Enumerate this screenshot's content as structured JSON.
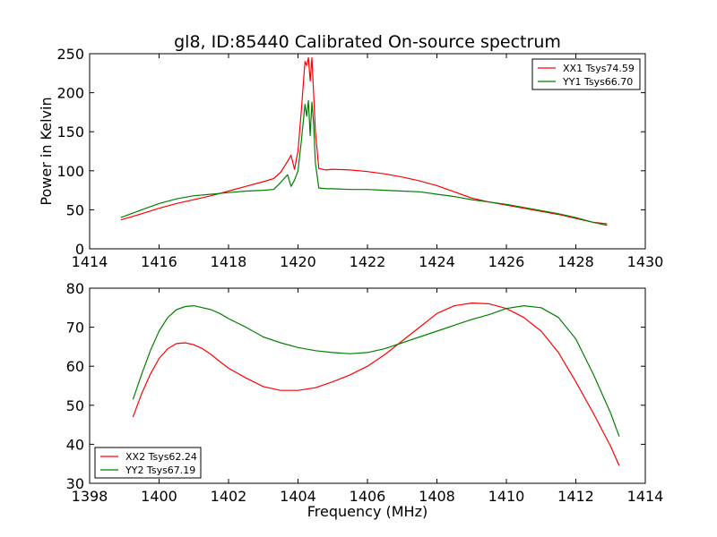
{
  "chart_data": [
    {
      "type": "line",
      "title": "gl8, ID:85440 Calibrated On-source spectrum",
      "xlabel": "",
      "ylabel": "Power in Kelvin",
      "xlim": [
        1414,
        1430
      ],
      "ylim": [
        0,
        250
      ],
      "xticks": [
        "1414",
        "1416",
        "1418",
        "1420",
        "1422",
        "1424",
        "1426",
        "1428",
        "1430"
      ],
      "yticks": [
        "0",
        "50",
        "100",
        "150",
        "200",
        "250"
      ],
      "grid": false,
      "legend_position": "top-right",
      "series": [
        {
          "name": "XX1 Tsys74.59",
          "color": "#ff0000",
          "x": [
            1414.9,
            1415.5,
            1416,
            1416.5,
            1417,
            1417.5,
            1418,
            1418.5,
            1419,
            1419.3,
            1419.5,
            1419.7,
            1419.8,
            1419.9,
            1420.0,
            1420.1,
            1420.2,
            1420.25,
            1420.3,
            1420.35,
            1420.4,
            1420.45,
            1420.5,
            1420.6,
            1420.8,
            1421,
            1421.5,
            1422,
            1422.5,
            1423,
            1423.5,
            1424,
            1424.5,
            1425,
            1425.5,
            1426,
            1426.5,
            1427,
            1427.5,
            1428,
            1428.5,
            1428.9
          ],
          "values": [
            37,
            45,
            52,
            58,
            63,
            68,
            74,
            80,
            86,
            90,
            98,
            112,
            120,
            102,
            125,
            180,
            240,
            235,
            245,
            215,
            245,
            200,
            150,
            103,
            101,
            102,
            101,
            99,
            96,
            92,
            87,
            81,
            73,
            65,
            60,
            56,
            52,
            48,
            44,
            39,
            34,
            32
          ]
        },
        {
          "name": "YY1 Tsys66.70",
          "color": "#008000",
          "x": [
            1414.9,
            1415.5,
            1416,
            1416.5,
            1417,
            1417.5,
            1418,
            1418.5,
            1419,
            1419.3,
            1419.5,
            1419.7,
            1419.8,
            1419.9,
            1420.0,
            1420.1,
            1420.2,
            1420.25,
            1420.3,
            1420.35,
            1420.4,
            1420.45,
            1420.5,
            1420.6,
            1420.8,
            1421,
            1421.5,
            1422,
            1422.5,
            1423,
            1423.5,
            1424,
            1424.5,
            1425,
            1425.5,
            1426,
            1426.5,
            1427,
            1427.5,
            1428,
            1428.5,
            1428.9
          ],
          "values": [
            40,
            50,
            58,
            64,
            68,
            70,
            72,
            74,
            75,
            76,
            85,
            95,
            80,
            88,
            100,
            140,
            185,
            170,
            190,
            145,
            188,
            160,
            110,
            78,
            77,
            77,
            76,
            76,
            75,
            74,
            73,
            70,
            67,
            63,
            60,
            57,
            53,
            49,
            45,
            40,
            34,
            30
          ]
        }
      ]
    },
    {
      "type": "line",
      "title": "",
      "xlabel": "Frequency (MHz)",
      "ylabel": "",
      "xlim": [
        1398,
        1414
      ],
      "ylim": [
        30,
        80
      ],
      "xticks": [
        "1398",
        "1400",
        "1402",
        "1404",
        "1406",
        "1408",
        "1410",
        "1412",
        "1414"
      ],
      "yticks": [
        "30",
        "40",
        "50",
        "60",
        "70",
        "80"
      ],
      "grid": false,
      "legend_position": "bottom-left",
      "series": [
        {
          "name": "XX2 Tsys62.24",
          "color": "#ff0000",
          "x": [
            1399.25,
            1399.5,
            1399.75,
            1400,
            1400.25,
            1400.5,
            1400.75,
            1401,
            1401.25,
            1401.5,
            1401.75,
            1402,
            1402.5,
            1403,
            1403.5,
            1404,
            1404.5,
            1405,
            1405.5,
            1406,
            1406.5,
            1407,
            1407.5,
            1408,
            1408.5,
            1409,
            1409.5,
            1410,
            1410.5,
            1411,
            1411.5,
            1412,
            1412.5,
            1413,
            1413.25
          ],
          "values": [
            47,
            53,
            58,
            62,
            64.5,
            65.8,
            66,
            65.5,
            64.5,
            63,
            61.2,
            59.5,
            57,
            54.8,
            53.8,
            53.8,
            54.5,
            56,
            57.8,
            60,
            63,
            66.5,
            70,
            73.5,
            75.5,
            76.2,
            76,
            74.8,
            72.5,
            69,
            63.5,
            56,
            48,
            39.5,
            34.5
          ]
        },
        {
          "name": "YY2 Tsys67.19",
          "color": "#008000",
          "x": [
            1399.25,
            1399.5,
            1399.75,
            1400,
            1400.25,
            1400.5,
            1400.75,
            1401,
            1401.25,
            1401.5,
            1401.75,
            1402,
            1402.5,
            1403,
            1403.5,
            1404,
            1404.5,
            1405,
            1405.5,
            1406,
            1406.5,
            1407,
            1407.5,
            1408,
            1408.5,
            1409,
            1409.5,
            1410,
            1410.5,
            1411,
            1411.5,
            1412,
            1412.5,
            1413,
            1413.25
          ],
          "values": [
            51.5,
            58,
            64,
            69,
            72.5,
            74.5,
            75.3,
            75.5,
            75,
            74.5,
            73.5,
            72.2,
            70,
            67.5,
            66,
            64.8,
            64,
            63.5,
            63.2,
            63.5,
            64.5,
            66,
            67.5,
            69,
            70.5,
            72,
            73.2,
            74.8,
            75.5,
            75,
            72.5,
            67,
            58,
            48,
            42
          ]
        }
      ]
    }
  ]
}
